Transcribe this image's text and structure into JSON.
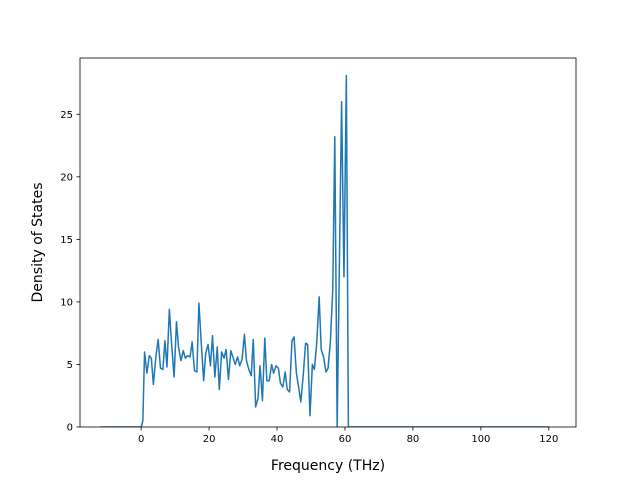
{
  "chart_data": {
    "type": "line",
    "x_label": "Frequency (THz)",
    "y_label": "Density of States",
    "xlim": [
      -18,
      128
    ],
    "ylim": [
      0,
      29.5
    ],
    "xticks": [
      0,
      20,
      40,
      60,
      80,
      100,
      120
    ],
    "yticks": [
      0,
      5,
      10,
      15,
      20,
      25
    ],
    "grid": false,
    "series": [
      {
        "color": "#1f77b4",
        "x": [
          -12,
          0,
          0.5,
          1,
          1.7,
          2.4,
          3,
          3.6,
          4.3,
          5,
          5.7,
          6.4,
          7,
          7.6,
          8.3,
          9,
          9.7,
          10.4,
          11,
          11.7,
          12.4,
          13,
          13.7,
          14.4,
          15,
          15.7,
          16.4,
          17,
          17.7,
          18.4,
          19,
          19.7,
          20.4,
          21,
          21.7,
          22.4,
          23,
          23.7,
          24.4,
          25,
          25.7,
          26.4,
          27,
          27.7,
          28.4,
          29,
          29.7,
          30.4,
          31,
          31.7,
          32.4,
          33,
          33.7,
          34.4,
          35,
          35.7,
          36.4,
          37,
          37.7,
          38.4,
          39,
          39.7,
          40.4,
          41,
          41.7,
          42.4,
          43,
          43.7,
          44.4,
          45,
          45.7,
          46.4,
          47,
          47.7,
          48.4,
          49,
          49.7,
          50.4,
          51,
          51.7,
          52.4,
          53,
          53.7,
          54.4,
          55,
          55.7,
          56.4,
          57,
          57.7,
          58.4,
          59,
          59.7,
          60.4,
          61,
          120
        ],
        "values": [
          0,
          0,
          0.5,
          6,
          4.3,
          5.7,
          5.5,
          3.4,
          5.5,
          7,
          4.7,
          4.6,
          6.9,
          4.8,
          9.4,
          6.5,
          4,
          8.4,
          6.4,
          5.3,
          6.1,
          5.5,
          5.7,
          5.6,
          6.8,
          4.5,
          4.4,
          9.9,
          6.7,
          3.7,
          5.9,
          6.6,
          4.9,
          7.3,
          4,
          6.4,
          3,
          6,
          5.5,
          6.2,
          3.8,
          6.1,
          5.6,
          5,
          5.6,
          4.9,
          5.4,
          7.4,
          5.3,
          4.6,
          4.1,
          7,
          1.6,
          2.3,
          4.9,
          2.1,
          7.1,
          3.7,
          3.7,
          5,
          4.3,
          4.9,
          4.7,
          3.5,
          3.2,
          4.4,
          3,
          2.8,
          6.9,
          7.2,
          4.3,
          3.1,
          2,
          4.1,
          6.7,
          6.6,
          0.9,
          5,
          4.6,
          6.8,
          10.4,
          6.2,
          5.6,
          4.4,
          4.7,
          6.8,
          11,
          23.2,
          0,
          14,
          26,
          12,
          28.1,
          0,
          0
        ]
      }
    ]
  }
}
